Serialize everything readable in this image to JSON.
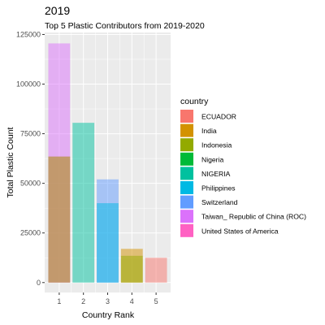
{
  "chart_data": {
    "type": "bar",
    "title": "2019",
    "subtitle": "Top 5 Plastic Contributors from 2019-2020",
    "xlabel": "Country Rank",
    "ylabel": "Total Plastic Count",
    "categories": [
      "1",
      "2",
      "3",
      "4",
      "5"
    ],
    "ylim": [
      -5000,
      126000
    ],
    "yticks": [
      0,
      25000,
      50000,
      75000,
      100000,
      125000
    ],
    "ytick_labels": [
      "0",
      "25000",
      "50000",
      "75000",
      "100000",
      "125000"
    ],
    "grid": true,
    "legend": {
      "title": "country",
      "position": "right",
      "entries": [
        {
          "name": "ECUADOR",
          "color": "#F8766D"
        },
        {
          "name": "India",
          "color": "#D39200"
        },
        {
          "name": "Indonesia",
          "color": "#93AA00"
        },
        {
          "name": "Nigeria",
          "color": "#00BA38"
        },
        {
          "name": "NIGERIA",
          "color": "#00C19F"
        },
        {
          "name": "Philippines",
          "color": "#00B9E3"
        },
        {
          "name": "Switzerland",
          "color": "#619CFF"
        },
        {
          "name": "Taiwan_ Republic of China (ROC)",
          "color": "#DB72FB"
        },
        {
          "name": "United States of America",
          "color": "#FF61C3"
        }
      ]
    },
    "bars": [
      {
        "rank": 1,
        "country": "Taiwan_ Republic of China (ROC)",
        "value": 120500
      },
      {
        "rank": 1,
        "country": "United States of America",
        "value": 63500
      },
      {
        "rank": 1,
        "country": "Indonesia",
        "value": 63500
      },
      {
        "rank": 2,
        "country": "NIGERIA",
        "value": 80500
      },
      {
        "rank": 3,
        "country": "Switzerland",
        "value": 52000
      },
      {
        "rank": 3,
        "country": "Philippines",
        "value": 40000
      },
      {
        "rank": 4,
        "country": "India",
        "value": 17000
      },
      {
        "rank": 4,
        "country": "Indonesia",
        "value": 13500
      },
      {
        "rank": 5,
        "country": "ECUADOR",
        "value": 12500
      }
    ],
    "bar_opacity": 0.5
  }
}
